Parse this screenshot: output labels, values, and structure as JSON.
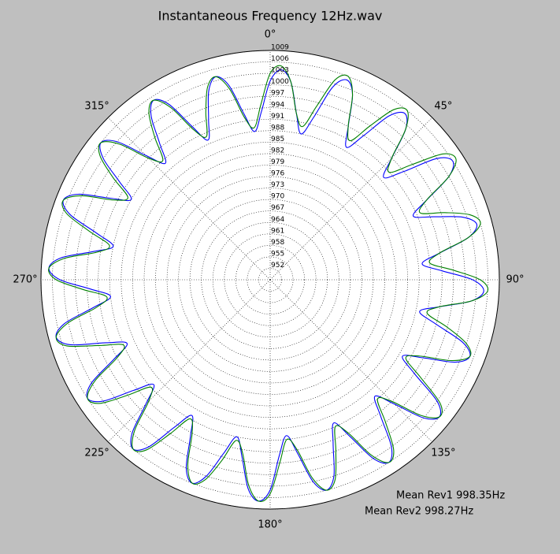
{
  "chart_data": {
    "type": "polar",
    "title": "Instantaneous Frequency  12Hz.wav",
    "annotations": [
      "Mean Rev1 998.35Hz",
      "Mean Rev2 998.27Hz"
    ],
    "x": [
      0,
      3,
      6,
      9,
      12,
      15,
      18,
      21,
      24,
      27,
      30,
      33,
      36,
      39,
      42,
      45,
      48,
      51,
      54,
      57,
      60,
      63,
      66,
      69,
      72,
      75,
      78,
      81,
      84,
      87,
      90,
      93,
      96,
      99,
      102,
      105,
      108,
      111,
      114,
      117,
      120,
      123,
      126,
      129,
      132,
      135,
      138,
      141,
      144,
      147,
      150,
      153,
      156,
      159,
      162,
      165,
      168,
      171,
      174,
      177,
      180,
      183,
      186,
      189,
      192,
      195,
      198,
      201,
      204,
      207,
      210,
      213,
      216,
      219,
      222,
      225,
      228,
      231,
      234,
      237,
      240,
      243,
      246,
      249,
      252,
      255,
      258,
      261,
      264,
      267,
      270,
      273,
      276,
      279,
      282,
      285,
      288,
      291,
      294,
      297,
      300,
      303,
      306,
      309,
      312,
      315,
      318,
      321,
      324,
      327,
      330,
      333,
      336,
      339,
      342,
      345,
      348,
      351,
      354,
      357
    ],
    "series": [
      {
        "name": "Rev1",
        "color": "#0000ff",
        "values": [
          1001,
          1004,
          1001,
          993,
          988,
          993,
          1002,
          1005,
          1002,
          994,
          989,
          994,
          1002,
          1005,
          1002,
          994,
          989,
          994,
          1003,
          1006,
          1003,
          995,
          990,
          995,
          1002,
          1005,
          1002,
          994,
          989,
          994,
          1002,
          1005,
          1002,
          994,
          989,
          994,
          1002,
          1005,
          1002,
          994,
          989,
          994,
          1003,
          1006,
          1003,
          995,
          990,
          995,
          1003,
          1006,
          1003,
          995,
          990,
          995,
          1003,
          1006,
          1003,
          995,
          990,
          995,
          1004,
          1007,
          1004,
          996,
          991,
          996,
          1003,
          1006,
          1003,
          995,
          990,
          995,
          1003,
          1006,
          1003,
          995,
          990,
          995,
          1003,
          1006,
          1003,
          995,
          990,
          995,
          1004,
          1007,
          1004,
          996,
          991,
          996,
          1004,
          1007,
          1004,
          996,
          991,
          996,
          1004,
          1007,
          1004,
          996,
          991,
          996,
          1003,
          1006,
          1003,
          995,
          990,
          995,
          1002,
          1005,
          1002,
          994,
          989,
          994,
          1001,
          1004,
          1001,
          993,
          988,
          993
        ]
      },
      {
        "name": "Rev2",
        "color": "#008000",
        "values": [
          1003,
          1005,
          1001,
          993,
          990,
          996,
          1004,
          1006,
          1002,
          994,
          991,
          997,
          1004,
          1006,
          1002,
          994,
          991,
          997,
          1005,
          1007,
          1003,
          995,
          992,
          998,
          1004,
          1006,
          1002,
          994,
          991,
          997,
          1004,
          1006,
          1002,
          994,
          991,
          997,
          1003,
          1005,
          1001,
          993,
          990,
          996,
          1004,
          1006,
          1002,
          994,
          991,
          997,
          1004,
          1006,
          1002,
          994,
          991,
          997,
          1004,
          1006,
          1002,
          994,
          991,
          997,
          1005,
          1007,
          1003,
          995,
          992,
          998,
          1004,
          1006,
          1002,
          994,
          991,
          997,
          1004,
          1006,
          1002,
          994,
          991,
          997,
          1004,
          1006,
          1002,
          994,
          991,
          997,
          1005,
          1007,
          1003,
          995,
          992,
          998,
          1005,
          1007,
          1003,
          995,
          992,
          998,
          1005,
          1007,
          1003,
          995,
          992,
          998,
          1004,
          1006,
          1002,
          994,
          991,
          997,
          1003,
          1005,
          1001,
          993,
          990,
          996,
          1002,
          1004,
          1000,
          992,
          989,
          995
        ]
      }
    ],
    "ylim": [
      949,
      1009
    ],
    "yticks": [
      952,
      955,
      958,
      961,
      964,
      967,
      970,
      973,
      976,
      979,
      982,
      985,
      988,
      991,
      994,
      997,
      1000,
      1003,
      1006,
      1009
    ],
    "xticks": [
      {
        "value": 0,
        "label": "0°"
      },
      {
        "value": 45,
        "label": "45°"
      },
      {
        "value": 90,
        "label": "90°"
      },
      {
        "value": 135,
        "label": "135°"
      },
      {
        "value": 180,
        "label": "180°"
      },
      {
        "value": 225,
        "label": "225°"
      },
      {
        "value": 270,
        "label": "270°"
      },
      {
        "value": 315,
        "label": "315°"
      }
    ],
    "grid": true
  }
}
